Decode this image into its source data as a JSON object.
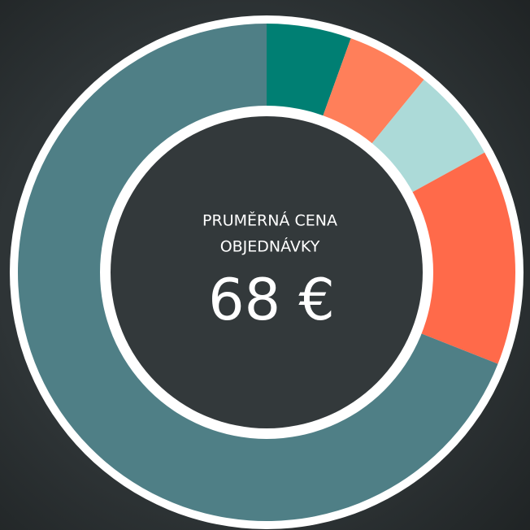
{
  "chart_data": {
    "type": "donut",
    "title": [
      "PRUMĚRNÁ CENA",
      "OBJEDNÁVKY"
    ],
    "center_label": "68 €",
    "values": [
      5.5,
      5.4,
      6.1,
      14,
      69
    ],
    "colors": [
      "#007f73",
      "#ff7f5a",
      "#acdad8",
      "#ff6a4a",
      "#4f7f86"
    ]
  }
}
